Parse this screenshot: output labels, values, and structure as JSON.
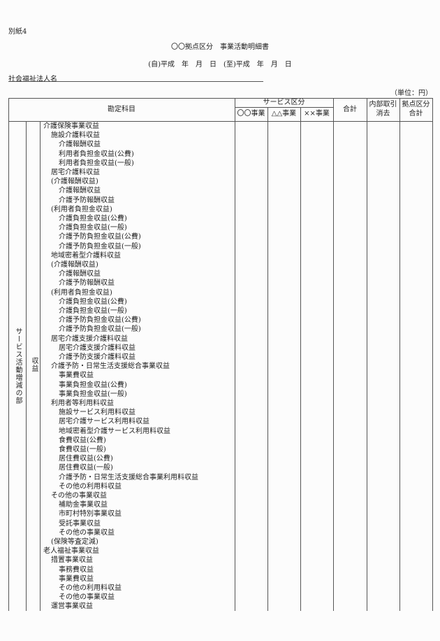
{
  "doc": {
    "attachment": "別紙4",
    "title": "〇〇拠点区分　事業活動明細書",
    "period": "(自)平成　年　月　日　(至)平成　年　月　日",
    "corp_label": "社会福祉法人名",
    "unit": "（単位：円）"
  },
  "table": {
    "header": {
      "account": "勘定科目",
      "service_group": "サービス区分",
      "services": [
        "〇〇事業",
        "△△事業",
        "××事業"
      ],
      "total": "合計",
      "internal_line1": "内部取引",
      "internal_line2": "消去",
      "base_line1": "拠点区分",
      "base_line2": "合計"
    },
    "section_label": "サービス活動増減の部",
    "subsection_label": "収益",
    "rows": [
      {
        "label": "介護保険事業収益",
        "level": 0
      },
      {
        "label": "施設介護料収益",
        "level": 1
      },
      {
        "label": "介護報酬収益",
        "level": 2
      },
      {
        "label": "利用者負担金収益(公費)",
        "level": 2
      },
      {
        "label": "利用者負担金収益(一般)",
        "level": 2
      },
      {
        "label": "居宅介護料収益",
        "level": 1
      },
      {
        "label": "(介護報酬収益)",
        "level": 1
      },
      {
        "label": "介護報酬収益",
        "level": 2
      },
      {
        "label": "介護予防報酬収益",
        "level": 2
      },
      {
        "label": "(利用者負担金収益)",
        "level": 1
      },
      {
        "label": "介護負担金収益(公費)",
        "level": 2
      },
      {
        "label": "介護負担金収益(一般)",
        "level": 2
      },
      {
        "label": "介護予防負担金収益(公費)",
        "level": 2
      },
      {
        "label": "介護予防負担金収益(一般)",
        "level": 2
      },
      {
        "label": "地域密着型介護料収益",
        "level": 1
      },
      {
        "label": "(介護報酬収益)",
        "level": 1
      },
      {
        "label": "介護報酬収益",
        "level": 2
      },
      {
        "label": "介護予防報酬収益",
        "level": 2
      },
      {
        "label": "(利用者負担金収益)",
        "level": 1
      },
      {
        "label": "介護負担金収益(公費)",
        "level": 2
      },
      {
        "label": "介護負担金収益(一般)",
        "level": 2
      },
      {
        "label": "介護予防負担金収益(公費)",
        "level": 2
      },
      {
        "label": "介護予防負担金収益(一般)",
        "level": 2
      },
      {
        "label": "居宅介護支援介護料収益",
        "level": 1
      },
      {
        "label": "居宅介護支援介護料収益",
        "level": 2
      },
      {
        "label": "介護予防支援介護料収益",
        "level": 2
      },
      {
        "label": "介護予防・日常生活支援総合事業収益",
        "level": 1
      },
      {
        "label": "事業費収益",
        "level": 2
      },
      {
        "label": "事業負担金収益(公費)",
        "level": 2
      },
      {
        "label": "事業負担金収益(一般)",
        "level": 2
      },
      {
        "label": "利用者等利用料収益",
        "level": 1
      },
      {
        "label": "施設サービス利用料収益",
        "level": 2
      },
      {
        "label": "居宅介護サービス利用料収益",
        "level": 2
      },
      {
        "label": "地域密着型介護サービス利用料収益",
        "level": 2
      },
      {
        "label": "食費収益(公費)",
        "level": 2
      },
      {
        "label": "食費収益(一般)",
        "level": 2
      },
      {
        "label": "居住費収益(公費)",
        "level": 2
      },
      {
        "label": "居住費収益(一般)",
        "level": 2
      },
      {
        "label": "介護予防・日常生活支援総合事業利用料収益",
        "level": 2
      },
      {
        "label": "その他の利用料収益",
        "level": 2
      },
      {
        "label": "その他の事業収益",
        "level": 1
      },
      {
        "label": "補助金事業収益",
        "level": 2
      },
      {
        "label": "市町村特別事業収益",
        "level": 2
      },
      {
        "label": "受託事業収益",
        "level": 2
      },
      {
        "label": "その他の事業収益",
        "level": 2
      },
      {
        "label": "(保険等査定減)",
        "level": 1
      },
      {
        "label": "老人福祉事業収益",
        "level": 0
      },
      {
        "label": "措置事業収益",
        "level": 1
      },
      {
        "label": "事務費収益",
        "level": 2
      },
      {
        "label": "事業費収益",
        "level": 2
      },
      {
        "label": "その他の利用料収益",
        "level": 2
      },
      {
        "label": "その他の事業収益",
        "level": 2
      },
      {
        "label": "運営事業収益",
        "level": 1
      }
    ]
  }
}
